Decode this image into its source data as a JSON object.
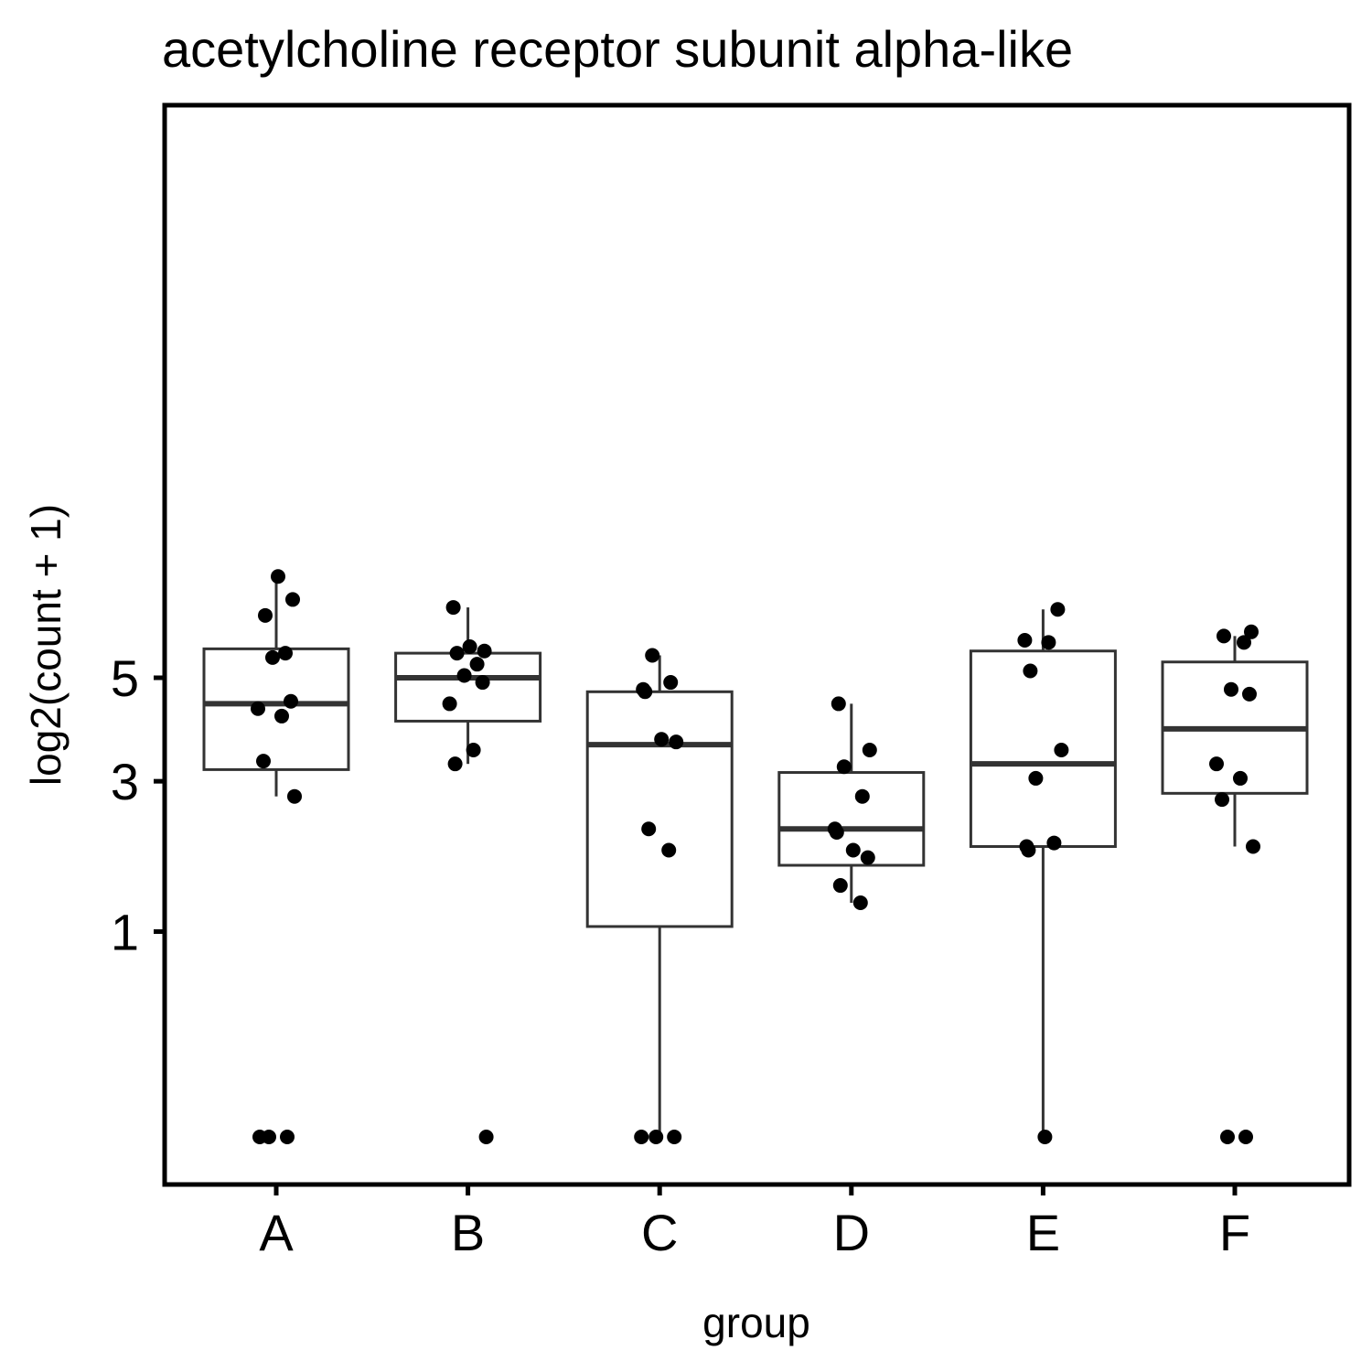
{
  "chart_data": {
    "type": "box",
    "title": "acetylcholine receptor subunit alpha-like",
    "xlabel": "group",
    "ylabel": "log2(count + 1)",
    "y_scale": "sqrt",
    "ylim": [
      0,
      7.5
    ],
    "yticks": [
      1,
      3,
      5
    ],
    "grid": false,
    "categories": [
      "A",
      "B",
      "C",
      "D",
      "E",
      "F"
    ],
    "boxes": [
      {
        "group": "A",
        "whisker_low": 2.75,
        "q1": 3.2,
        "median": 4.45,
        "q3": 5.65,
        "whisker_high": 7.45
      },
      {
        "group": "B",
        "whisker_low": 3.3,
        "q1": 4.1,
        "median": 5.0,
        "q3": 5.55,
        "whisker_high": 6.65
      },
      {
        "group": "C",
        "whisker_low": 0.0,
        "q1": 1.05,
        "median": 3.65,
        "q3": 4.7,
        "whisker_high": 5.5
      },
      {
        "group": "D",
        "whisker_low": 1.3,
        "q1": 1.75,
        "median": 2.25,
        "q3": 3.15,
        "whisker_high": 4.45
      },
      {
        "group": "E",
        "whisker_low": 0.0,
        "q1": 2.0,
        "median": 3.3,
        "q3": 5.6,
        "whisker_high": 6.6
      },
      {
        "group": "F",
        "whisker_low": 2.0,
        "q1": 2.8,
        "median": 3.95,
        "q3": 5.35,
        "whisker_high": 5.95
      }
    ],
    "points": [
      {
        "group": "A",
        "values": [
          0,
          0,
          0,
          2.75,
          3.35,
          4.2,
          4.35,
          4.5,
          5.45,
          5.55,
          6.45,
          6.85,
          7.45
        ]
      },
      {
        "group": "B",
        "values": [
          0,
          3.3,
          3.55,
          4.45,
          4.9,
          5.05,
          5.3,
          5.55,
          5.6,
          5.7,
          6.65
        ]
      },
      {
        "group": "C",
        "values": [
          0,
          0,
          0,
          1.95,
          2.25,
          3.7,
          3.75,
          4.7,
          4.75,
          4.9,
          5.5
        ]
      },
      {
        "group": "D",
        "values": [
          1.3,
          1.5,
          1.85,
          1.95,
          2.2,
          2.25,
          2.75,
          3.25,
          3.55,
          4.45
        ]
      },
      {
        "group": "E",
        "values": [
          0,
          1.95,
          2.0,
          2.05,
          3.05,
          3.55,
          5.15,
          5.8,
          5.85,
          6.6
        ]
      },
      {
        "group": "F",
        "values": [
          0,
          0,
          2.0,
          2.7,
          3.05,
          3.3,
          4.65,
          4.75,
          5.8,
          5.95,
          6.05
        ]
      }
    ]
  }
}
